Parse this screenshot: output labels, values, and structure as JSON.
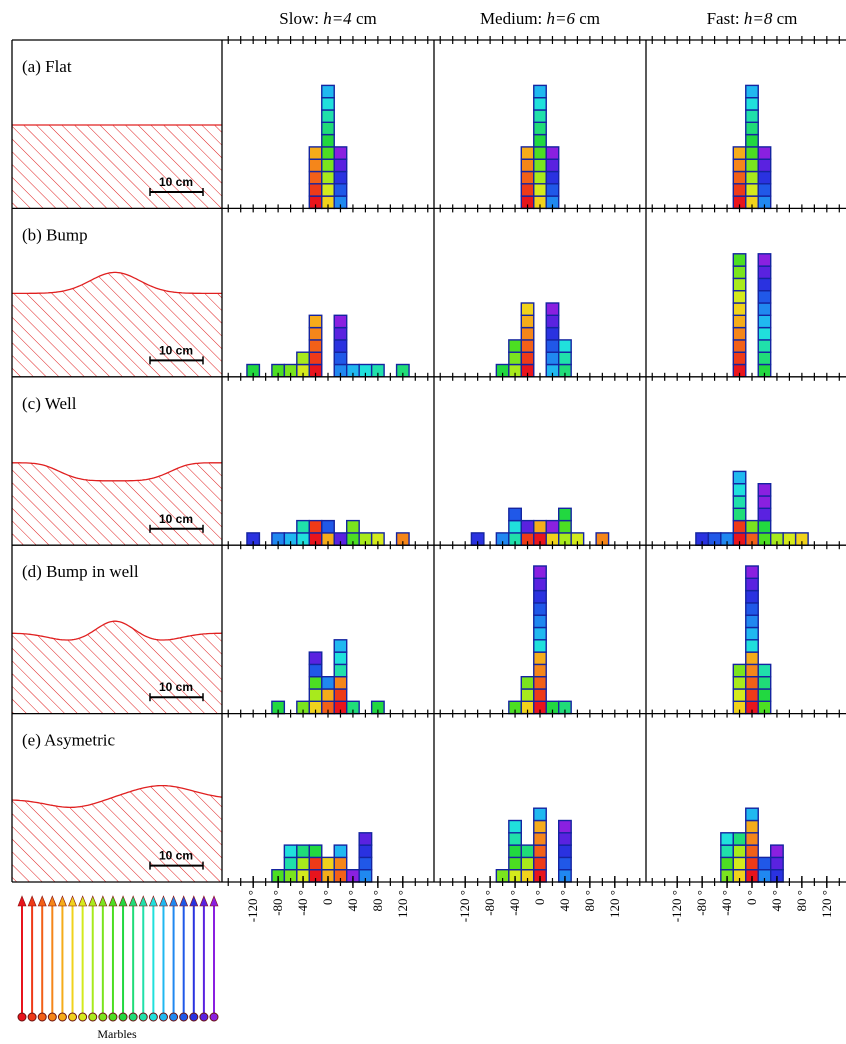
{
  "chart_data": {
    "type": "stacked-squares",
    "columns": [
      {
        "speed": "Slow:",
        "h": "h=4",
        "unit": "cm"
      },
      {
        "speed": "Medium:",
        "h": "h=6",
        "unit": "cm"
      },
      {
        "speed": "Fast:",
        "h": "h=8",
        "unit": "cm"
      }
    ],
    "xlim": [
      -170,
      170
    ],
    "xticks": [
      {
        "value": -120,
        "label": "-120 °"
      },
      {
        "value": -80,
        "label": "-80 °"
      },
      {
        "value": -40,
        "label": "-40 °"
      },
      {
        "value": 0,
        "label": "0 °"
      },
      {
        "value": 40,
        "label": "40 °"
      },
      {
        "value": 80,
        "label": "80 °"
      },
      {
        "value": 120,
        "label": "120 °"
      }
    ],
    "minor_xticks": [
      -160,
      -140,
      -120,
      -100,
      -80,
      -60,
      -40,
      -20,
      0,
      20,
      40,
      60,
      80,
      100,
      120,
      140,
      160
    ],
    "bin_width": 20,
    "scale_bar": "10 cm",
    "legend_label": "Marbles",
    "marble_colors": [
      "#e8141c",
      "#ee3a18",
      "#f26018",
      "#f5861a",
      "#f5ac1a",
      "#f0d21c",
      "#d4ea1c",
      "#a8ea1c",
      "#7ae41e",
      "#4cde22",
      "#22d840",
      "#20dc78",
      "#20e0aa",
      "#20e0dc",
      "#20b8f0",
      "#2088f0",
      "#2058e8",
      "#2a32e0",
      "#5a22e0",
      "#8a20e0"
    ],
    "rows": [
      {
        "label": "(a) Flat",
        "cells": [
          [
            {
              "angle": -20,
              "marbles": [
                0,
                1,
                2,
                3,
                4
              ]
            },
            {
              "angle": 0,
              "marbles": [
                5,
                6,
                7,
                8,
                9,
                10,
                11,
                12,
                13,
                14
              ]
            },
            {
              "angle": 20,
              "marbles": [
                15,
                16,
                17,
                18,
                19
              ]
            }
          ],
          [
            {
              "angle": -20,
              "marbles": [
                0,
                1,
                2,
                3,
                4
              ]
            },
            {
              "angle": 0,
              "marbles": [
                5,
                6,
                7,
                8,
                9,
                10,
                11,
                12,
                13,
                14
              ]
            },
            {
              "angle": 20,
              "marbles": [
                15,
                16,
                17,
                18,
                19
              ]
            }
          ],
          [
            {
              "angle": -20,
              "marbles": [
                0,
                1,
                2,
                3,
                4
              ]
            },
            {
              "angle": 0,
              "marbles": [
                5,
                6,
                7,
                8,
                9,
                10,
                11,
                12,
                13,
                14
              ]
            },
            {
              "angle": 20,
              "marbles": [
                15,
                16,
                17,
                18,
                19
              ]
            }
          ]
        ]
      },
      {
        "label": "(b) Bump",
        "cells": [
          [
            {
              "angle": -120,
              "marbles": [
                10
              ]
            },
            {
              "angle": -80,
              "marbles": [
                9
              ]
            },
            {
              "angle": -60,
              "marbles": [
                8
              ]
            },
            {
              "angle": -40,
              "marbles": [
                6,
                7
              ]
            },
            {
              "angle": -20,
              "marbles": [
                0,
                1,
                2,
                3,
                4
              ]
            },
            {
              "angle": 20,
              "marbles": [
                15,
                16,
                17,
                18,
                19
              ]
            },
            {
              "angle": 40,
              "marbles": [
                14
              ]
            },
            {
              "angle": 60,
              "marbles": [
                13
              ]
            },
            {
              "angle": 80,
              "marbles": [
                12
              ]
            },
            {
              "angle": 120,
              "marbles": [
                11
              ]
            }
          ],
          [
            {
              "angle": -60,
              "marbles": [
                10
              ]
            },
            {
              "angle": -40,
              "marbles": [
                7,
                8,
                9
              ]
            },
            {
              "angle": -20,
              "marbles": [
                0,
                1,
                2,
                3,
                4,
                5
              ]
            },
            {
              "angle": 20,
              "marbles": [
                14,
                15,
                16,
                17,
                18,
                19
              ]
            },
            {
              "angle": 40,
              "marbles": [
                11,
                12,
                13
              ]
            }
          ],
          [
            {
              "angle": -20,
              "marbles": [
                0,
                1,
                2,
                3,
                4,
                5,
                6,
                7,
                8,
                9
              ]
            },
            {
              "angle": 20,
              "marbles": [
                10,
                11,
                12,
                13,
                14,
                15,
                16,
                17,
                18,
                19
              ]
            }
          ]
        ]
      },
      {
        "label": "(c) Well",
        "cells": [
          [
            {
              "angle": -120,
              "marbles": [
                17
              ]
            },
            {
              "angle": -80,
              "marbles": [
                15
              ]
            },
            {
              "angle": -60,
              "marbles": [
                14
              ]
            },
            {
              "angle": -40,
              "marbles": [
                13,
                12
              ]
            },
            {
              "angle": -20,
              "marbles": [
                0,
                1
              ]
            },
            {
              "angle": 0,
              "marbles": [
                4,
                16
              ]
            },
            {
              "angle": 20,
              "marbles": [
                18
              ]
            },
            {
              "angle": 40,
              "marbles": [
                9,
                8
              ]
            },
            {
              "angle": 60,
              "marbles": [
                7
              ]
            },
            {
              "angle": 80,
              "marbles": [
                6
              ]
            },
            {
              "angle": 120,
              "marbles": [
                3
              ]
            }
          ],
          [
            {
              "angle": -100,
              "marbles": [
                17
              ]
            },
            {
              "angle": -60,
              "marbles": [
                15
              ]
            },
            {
              "angle": -40,
              "marbles": [
                12,
                13,
                16
              ]
            },
            {
              "angle": -20,
              "marbles": [
                1,
                18
              ]
            },
            {
              "angle": 0,
              "marbles": [
                0,
                4
              ]
            },
            {
              "angle": 20,
              "marbles": [
                5,
                19
              ]
            },
            {
              "angle": 40,
              "marbles": [
                7,
                9,
                10
              ]
            },
            {
              "angle": 60,
              "marbles": [
                6
              ]
            },
            {
              "angle": 100,
              "marbles": [
                3
              ]
            }
          ],
          [
            {
              "angle": -80,
              "marbles": [
                17
              ]
            },
            {
              "angle": -60,
              "marbles": [
                16
              ]
            },
            {
              "angle": -40,
              "marbles": [
                15
              ]
            },
            {
              "angle": -20,
              "marbles": [
                0,
                1,
                11,
                12,
                13,
                14
              ]
            },
            {
              "angle": 0,
              "marbles": [
                2,
                8
              ]
            },
            {
              "angle": 20,
              "marbles": [
                9,
                10,
                18,
                19,
                19
              ]
            },
            {
              "angle": 40,
              "marbles": [
                7
              ]
            },
            {
              "angle": 60,
              "marbles": [
                6
              ]
            },
            {
              "angle": 80,
              "marbles": [
                5
              ]
            }
          ]
        ]
      },
      {
        "label": "(d) Bump in well",
        "cells": [
          [
            {
              "angle": -80,
              "marbles": [
                10
              ]
            },
            {
              "angle": -40,
              "marbles": [
                8
              ]
            },
            {
              "angle": -20,
              "marbles": [
                5,
                7,
                9,
                16,
                18
              ]
            },
            {
              "angle": 0,
              "marbles": [
                2,
                4,
                15
              ]
            },
            {
              "angle": 20,
              "marbles": [
                0,
                1,
                3,
                12,
                13,
                14
              ]
            },
            {
              "angle": 40,
              "marbles": [
                11
              ]
            },
            {
              "angle": 80,
              "marbles": [
                10
              ]
            }
          ],
          [
            {
              "angle": -40,
              "marbles": [
                9
              ]
            },
            {
              "angle": -20,
              "marbles": [
                5,
                7,
                8
              ]
            },
            {
              "angle": 0,
              "marbles": [
                0,
                1,
                2,
                3,
                4,
                13,
                14,
                15,
                16,
                17,
                18,
                19
              ]
            },
            {
              "angle": 20,
              "marbles": [
                10
              ]
            },
            {
              "angle": 40,
              "marbles": [
                11
              ]
            }
          ],
          [
            {
              "angle": -20,
              "marbles": [
                5,
                6,
                7,
                8
              ]
            },
            {
              "angle": 0,
              "marbles": [
                0,
                1,
                2,
                3,
                4,
                13,
                14,
                15,
                16,
                17,
                18,
                19
              ]
            },
            {
              "angle": 20,
              "marbles": [
                9,
                10,
                11,
                12
              ]
            }
          ]
        ]
      },
      {
        "label": "(e) Asymetric",
        "cells": [
          [
            {
              "angle": -80,
              "marbles": [
                9
              ]
            },
            {
              "angle": -60,
              "marbles": [
                8,
                12,
                13
              ]
            },
            {
              "angle": -40,
              "marbles": [
                6,
                7,
                11
              ]
            },
            {
              "angle": -20,
              "marbles": [
                0,
                1,
                10
              ]
            },
            {
              "angle": 0,
              "marbles": [
                4,
                5
              ]
            },
            {
              "angle": 20,
              "marbles": [
                2,
                3,
                14
              ]
            },
            {
              "angle": 40,
              "marbles": [
                19
              ]
            },
            {
              "angle": 60,
              "marbles": [
                15,
                16,
                17,
                18
              ]
            }
          ],
          [
            {
              "angle": -60,
              "marbles": [
                8
              ]
            },
            {
              "angle": -40,
              "marbles": [
                6,
                9,
                10,
                12,
                13
              ]
            },
            {
              "angle": -20,
              "marbles": [
                5,
                7,
                11
              ]
            },
            {
              "angle": 0,
              "marbles": [
                0,
                1,
                2,
                3,
                4,
                14
              ]
            },
            {
              "angle": 40,
              "marbles": [
                15,
                16,
                17,
                18,
                19
              ]
            }
          ],
          [
            {
              "angle": -40,
              "marbles": [
                8,
                9,
                12,
                13
              ]
            },
            {
              "angle": -20,
              "marbles": [
                5,
                6,
                7,
                11
              ]
            },
            {
              "angle": 0,
              "marbles": [
                0,
                1,
                2,
                3,
                4,
                14
              ]
            },
            {
              "angle": 20,
              "marbles": [
                15,
                16
              ]
            },
            {
              "angle": 40,
              "marbles": [
                17,
                18,
                19
              ]
            }
          ]
        ]
      }
    ]
  }
}
